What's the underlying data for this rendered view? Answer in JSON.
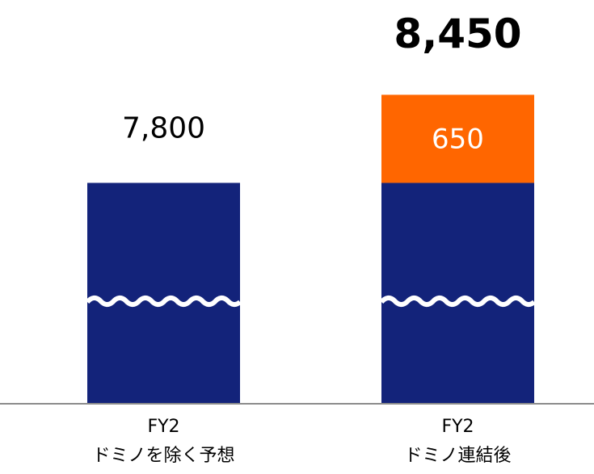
{
  "chart_data": {
    "type": "stacked_bar",
    "categories": [
      [
        "FY2",
        "ドミノを除く予想"
      ],
      [
        "FY2",
        "ドミノ連結後"
      ]
    ],
    "series": [
      {
        "color": "#13237a",
        "values": [
          7800,
          7800
        ]
      },
      {
        "color": "#ff6600",
        "values": [
          null,
          650
        ]
      }
    ],
    "totals": [
      7800,
      8450
    ],
    "total_labels": [
      "7,800",
      "8,450"
    ],
    "ylim": [
      6170,
      8500
    ],
    "axis_break": true
  }
}
